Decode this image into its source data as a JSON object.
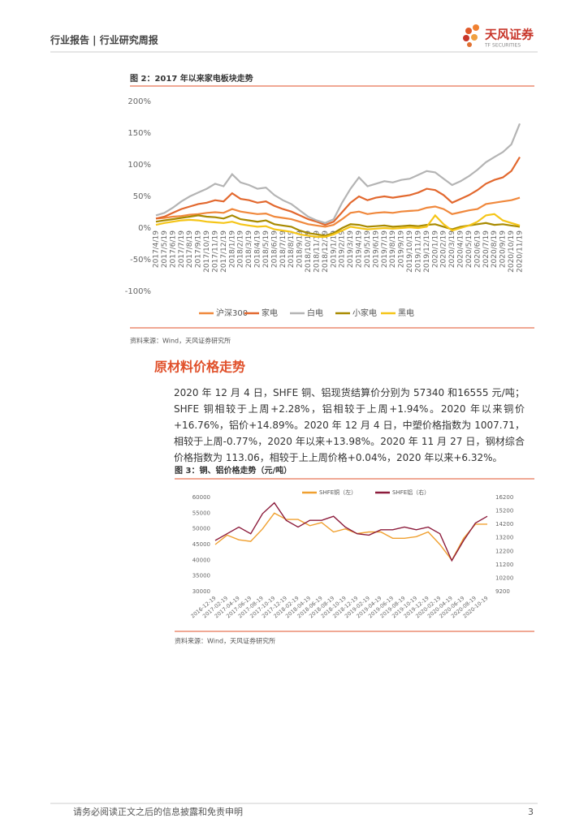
{
  "header": {
    "title": "行业报告 | 行业研究周报",
    "logo_name": "天风证券",
    "logo_sub": "TF SECURITIES"
  },
  "section": {
    "heading": "原材料价格走势",
    "paragraph": "2020 年 12 月 4 日，SHFE 铜、铝现货结算价分别为 57340 和16555 元/吨；SHFE 铜相较于上周+2.28%，铝相较于上周+1.94%。2020 年以来铜价+16.76%，铝价+14.89%。2020 年 12 月 4 日，中塑价格指数为 1007.71，相较于上周-0.77%，2020 年以来+13.98%。2020 年 11 月 27 日，钢材综合价格指数为 113.06，相较于上上周价格+0.04%，2020 年以来+6.32%。"
  },
  "chart_data": [
    {
      "type": "line",
      "title": "图 2：2017 年以来家电板块走势",
      "source": "资料来源：Wind，天风证券研究所",
      "categories": [
        "2017/4/19",
        "2017/5/19",
        "2017/6/19",
        "2017/7/19",
        "2017/8/19",
        "2017/9/19",
        "2017/10/19",
        "2017/11/19",
        "2017/12/19",
        "2018/1/19",
        "2018/2/19",
        "2018/3/19",
        "2018/4/19",
        "2018/5/19",
        "2018/6/19",
        "2018/7/19",
        "2018/8/19",
        "2018/9/19",
        "2018/10/19",
        "2018/11/19",
        "2018/12/19",
        "2019/1/19",
        "2019/2/19",
        "2019/3/19",
        "2019/4/19",
        "2019/5/19",
        "2019/6/19",
        "2019/7/19",
        "2019/8/19",
        "2019/9/19",
        "2019/10/19",
        "2019/11/19",
        "2019/12/19",
        "2020/1/19",
        "2020/2/19",
        "2020/3/19",
        "2020/4/19",
        "2020/5/19",
        "2020/6/19",
        "2020/7/19",
        "2020/8/19",
        "2020/9/19",
        "2020/10/19",
        "2020/11/19"
      ],
      "ylim": [
        -100,
        200
      ],
      "yticks": [
        {
          "value": -100,
          "label": "-100%"
        },
        {
          "value": -50,
          "label": "-50%"
        },
        {
          "value": 0,
          "label": "0%"
        },
        {
          "value": 50,
          "label": "50%"
        },
        {
          "value": 100,
          "label": "100%"
        },
        {
          "value": 150,
          "label": "150%"
        },
        {
          "value": 200,
          "label": "200%"
        }
      ],
      "grid": false,
      "series": [
        {
          "name": "沪深300",
          "color": "#f0883c",
          "values": [
            15,
            16,
            18,
            19,
            21,
            22,
            24,
            25,
            24,
            30,
            26,
            24,
            22,
            23,
            18,
            16,
            14,
            10,
            6,
            4,
            2,
            5,
            14,
            24,
            26,
            22,
            24,
            25,
            24,
            26,
            27,
            28,
            32,
            34,
            30,
            22,
            25,
            28,
            30,
            38,
            40,
            42,
            44,
            48
          ]
        },
        {
          "name": "家电",
          "color": "#e2682e",
          "values": [
            15,
            18,
            24,
            30,
            34,
            38,
            40,
            44,
            42,
            55,
            46,
            44,
            40,
            42,
            35,
            30,
            26,
            20,
            14,
            10,
            5,
            10,
            25,
            40,
            50,
            44,
            48,
            50,
            48,
            50,
            52,
            56,
            62,
            60,
            52,
            40,
            46,
            52,
            60,
            70,
            76,
            80,
            90,
            112
          ]
        },
        {
          "name": "白电",
          "color": "#b4b4b4",
          "values": [
            20,
            24,
            32,
            42,
            50,
            56,
            62,
            70,
            66,
            85,
            72,
            68,
            62,
            64,
            52,
            44,
            38,
            28,
            18,
            12,
            8,
            14,
            40,
            62,
            80,
            66,
            70,
            74,
            72,
            76,
            78,
            84,
            90,
            88,
            78,
            68,
            74,
            82,
            92,
            104,
            112,
            120,
            132,
            165
          ]
        },
        {
          "name": "小家电",
          "color": "#a88a00",
          "values": [
            10,
            12,
            14,
            16,
            18,
            20,
            18,
            17,
            15,
            20,
            14,
            12,
            10,
            12,
            6,
            4,
            2,
            -4,
            -8,
            -10,
            -12,
            -8,
            0,
            6,
            5,
            2,
            3,
            4,
            2,
            3,
            4,
            3,
            5,
            6,
            2,
            -2,
            2,
            4,
            6,
            8,
            5,
            6,
            4,
            2
          ]
        },
        {
          "name": "黑电",
          "color": "#f5c518",
          "values": [
            5,
            8,
            10,
            12,
            13,
            12,
            10,
            9,
            8,
            10,
            6,
            4,
            2,
            3,
            -2,
            -4,
            -6,
            -10,
            -12,
            -14,
            -14,
            -10,
            -4,
            2,
            0,
            -2,
            -1,
            0,
            -1,
            0,
            1,
            0,
            2,
            20,
            6,
            -4,
            0,
            4,
            10,
            20,
            22,
            12,
            8,
            4
          ]
        }
      ]
    },
    {
      "type": "line",
      "title": "图 3：铜、铝价格走势（元/吨）",
      "source": "资料来源：Wind，天风证券研究所",
      "categories": [
        "2016-12-19",
        "2017-02-19",
        "2017-04-19",
        "2017-06-19",
        "2017-08-19",
        "2017-10-19",
        "2017-12-19",
        "2018-02-19",
        "2018-04-19",
        "2018-06-19",
        "2018-08-19",
        "2018-10-19",
        "2018-12-19",
        "2019-02-19",
        "2019-04-19",
        "2019-06-19",
        "2019-08-19",
        "2019-10-19",
        "2019-12-19",
        "2020-02-19",
        "2020-04-19",
        "2020-06-19",
        "2020-08-19",
        "2020-10-19"
      ],
      "ylim": [
        30000,
        60000
      ],
      "yticks": [
        30000,
        35000,
        40000,
        45000,
        50000,
        55000,
        60000
      ],
      "y2lim": [
        9200,
        16200
      ],
      "y2ticks": [
        9200,
        10200,
        11200,
        12200,
        13200,
        14200,
        15200,
        16200
      ],
      "grid": false,
      "series": [
        {
          "name": "SHFE铜（左）",
          "color": "#f0a030",
          "values": [
            45000,
            48000,
            46500,
            46000,
            50000,
            55000,
            53000,
            53000,
            51000,
            52000,
            49000,
            50000,
            48500,
            49000,
            49000,
            47000,
            47000,
            47500,
            49000,
            45000,
            40000,
            47000,
            51500,
            51500
          ]
        },
        {
          "name": "SHFE铝（右）",
          "color": "#8c1c3c",
          "axis": "y2",
          "values": [
            13000,
            13500,
            14000,
            13500,
            15000,
            15800,
            14500,
            14000,
            14500,
            14500,
            14800,
            14000,
            13500,
            13400,
            13800,
            13800,
            14000,
            13800,
            14000,
            13500,
            11500,
            13000,
            14300,
            14800
          ]
        }
      ]
    }
  ],
  "footer": {
    "disclaimer": "请务必阅读正文之后的信息披露和免责申明",
    "page": "3"
  }
}
